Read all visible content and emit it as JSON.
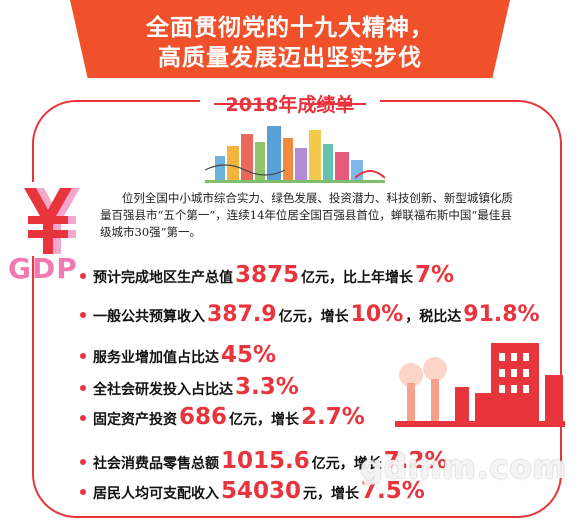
{
  "banner": {
    "line1": "全面贯彻党的十九大精神，",
    "line2": "高质量发展迈出坚实步伐"
  },
  "section_title": "2018年成绩单",
  "intro": "位列全国中小城市综合实力、绿色发展、投资潜力、科技创新、新型城镇化质量百强县市“五个第一”，连续14年位居全国百强县首位，蝉联福布斯中国“最佳县级城市30强”第一。",
  "gdp_label": "GDP",
  "stats": [
    {
      "parts": [
        {
          "t": "预计完成地区生产总值",
          "hl": false
        },
        {
          "t": "3875",
          "hl": true
        },
        {
          "t": "亿元，比上年增长",
          "hl": false
        },
        {
          "t": "7%",
          "hl": true
        }
      ]
    },
    {
      "parts": [
        {
          "t": "一般公共预算收入",
          "hl": false
        },
        {
          "t": "387.9",
          "hl": true
        },
        {
          "t": "亿元，增长",
          "hl": false
        },
        {
          "t": "10%",
          "hl": true
        },
        {
          "t": "，税比达",
          "hl": false
        },
        {
          "t": "91.8%",
          "hl": true
        }
      ]
    },
    {
      "parts": [
        {
          "t": "服务业增加值占比达",
          "hl": false
        },
        {
          "t": "45%",
          "hl": true
        }
      ]
    },
    {
      "parts": [
        {
          "t": "全社会研发投入占比达",
          "hl": false
        },
        {
          "t": "3.3%",
          "hl": true
        }
      ]
    },
    {
      "parts": [
        {
          "t": "固定资产投资",
          "hl": false
        },
        {
          "t": "686",
          "hl": true
        },
        {
          "t": "亿元，增长",
          "hl": false
        },
        {
          "t": "2.7%",
          "hl": true
        }
      ]
    },
    {
      "parts": [
        {
          "t": "社会消费品零售总额",
          "hl": false
        },
        {
          "t": "1015.6",
          "hl": true
        },
        {
          "t": "亿元，增长",
          "hl": false
        },
        {
          "t": "7.2%",
          "hl": true
        }
      ]
    },
    {
      "parts": [
        {
          "t": "居民人均可支配收入",
          "hl": false
        },
        {
          "t": "54030",
          "hl": true
        },
        {
          "t": "元，增长",
          "hl": false
        },
        {
          "t": "7.5%",
          "hl": true
        }
      ]
    }
  ],
  "watermark": "gdmm.com",
  "colors": {
    "accent": "#e8343c",
    "banner": "#f0512a",
    "gdp": "#f07ab0"
  }
}
